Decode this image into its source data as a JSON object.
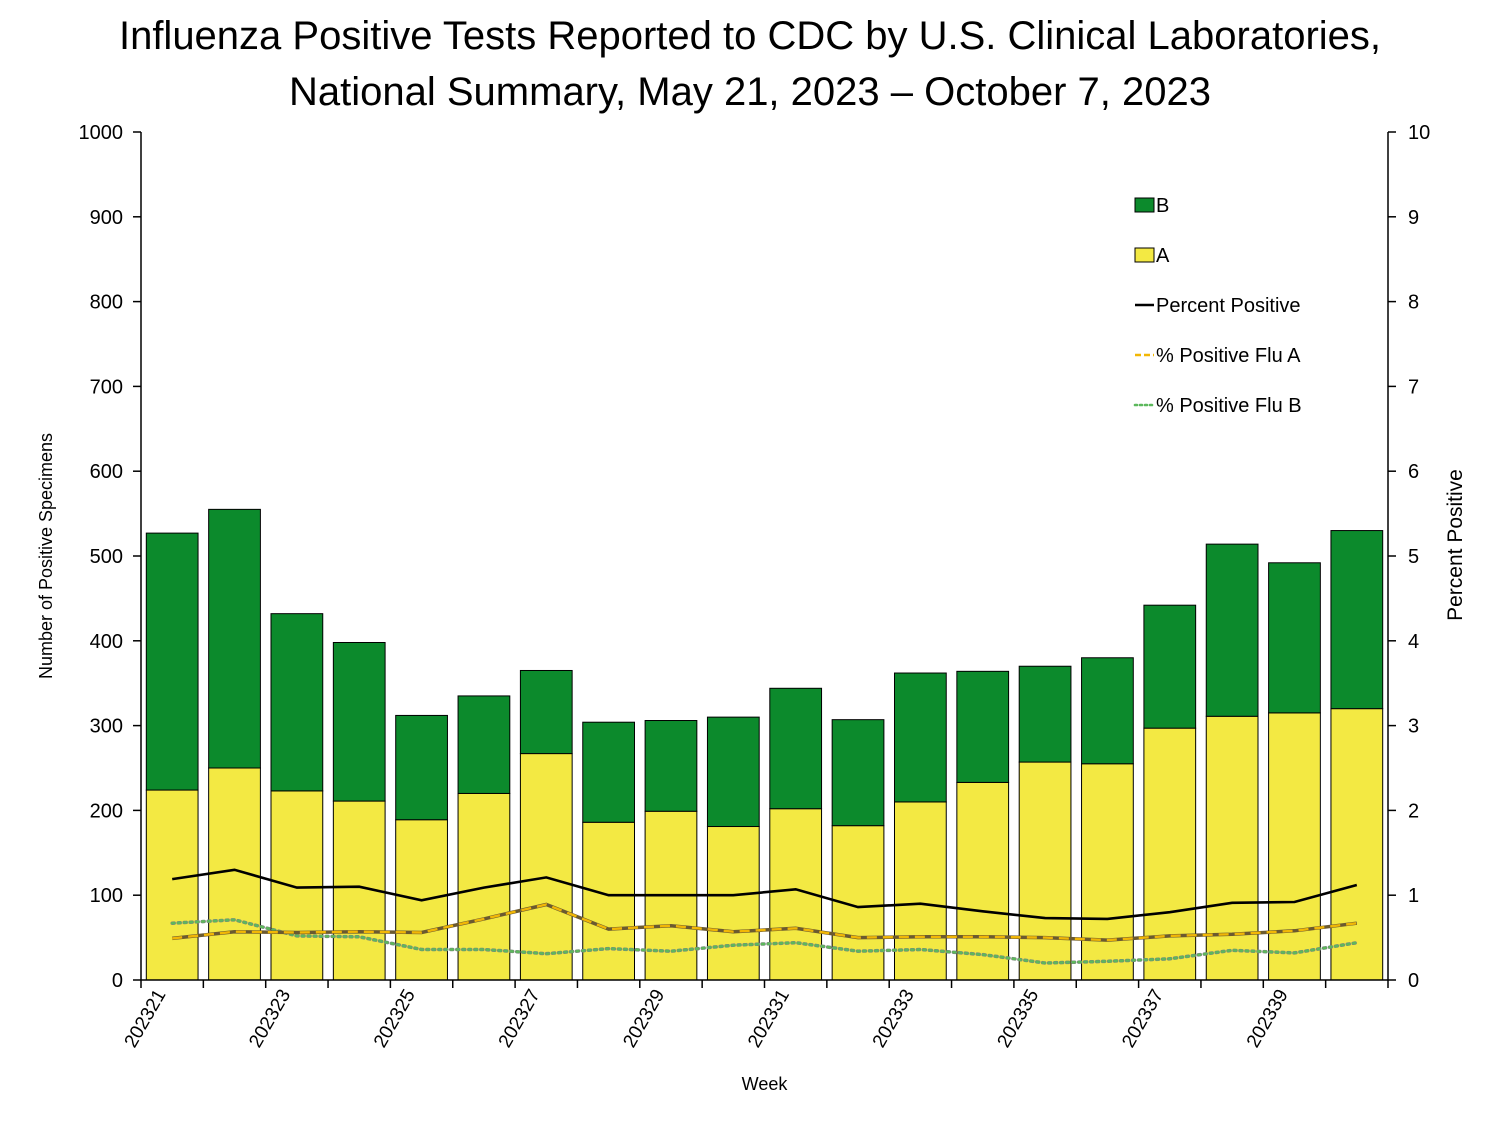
{
  "chart_data": {
    "type": "bar",
    "title_line1": "Influenza Positive Tests Reported to CDC by U.S. Clinical Laboratories,",
    "title_line2": "National Summary, May 21, 2023 – October 7, 2023",
    "xlabel": "Week",
    "ylabel": "Number of Positive Specimens",
    "y2label": "Percent Positive",
    "ylim": [
      0,
      1000
    ],
    "y2lim": [
      0,
      10
    ],
    "y_ticks": [
      "0",
      "100",
      "200",
      "300",
      "400",
      "500",
      "600",
      "700",
      "800",
      "900",
      "1000"
    ],
    "y2_ticks": [
      "0",
      "1",
      "2",
      "3",
      "4",
      "5",
      "6",
      "7",
      "8",
      "9",
      "10"
    ],
    "categories": [
      "202321",
      "202322",
      "202323",
      "202324",
      "202325",
      "202326",
      "202327",
      "202328",
      "202329",
      "202330",
      "202331",
      "202332",
      "202333",
      "202334",
      "202335",
      "202336",
      "202337",
      "202338",
      "202339",
      "202340"
    ],
    "x_tick_labels_shown": [
      "202321",
      "202323",
      "202325",
      "202327",
      "202329",
      "202331",
      "202333",
      "202335",
      "202337",
      "202339"
    ],
    "series": [
      {
        "name": "A",
        "kind": "stacked-bar",
        "color": "#F3E943",
        "values": [
          224,
          250,
          223,
          211,
          189,
          220,
          267,
          186,
          199,
          181,
          202,
          182,
          210,
          233,
          257,
          255,
          297,
          311,
          315,
          320
        ]
      },
      {
        "name": "B",
        "kind": "stacked-bar",
        "color": "#0C8A2C",
        "values": [
          303,
          305,
          209,
          187,
          123,
          115,
          98,
          118,
          107,
          129,
          142,
          125,
          152,
          131,
          113,
          125,
          145,
          203,
          177,
          210
        ]
      },
      {
        "name": "Percent Positive",
        "kind": "line",
        "axis": "right",
        "color": "#000000",
        "dash": "solid",
        "values": [
          1.19,
          1.3,
          1.09,
          1.1,
          0.94,
          1.09,
          1.21,
          1.0,
          1.0,
          1.0,
          1.07,
          0.86,
          0.9,
          0.81,
          0.73,
          0.72,
          0.8,
          0.91,
          0.92,
          1.12
        ]
      },
      {
        "name": "% Positive Flu A",
        "kind": "line",
        "axis": "right",
        "color": "#F2B705",
        "dash": "dashed",
        "values": [
          0.49,
          0.57,
          0.56,
          0.57,
          0.56,
          0.72,
          0.89,
          0.6,
          0.64,
          0.57,
          0.61,
          0.5,
          0.51,
          0.51,
          0.5,
          0.47,
          0.52,
          0.54,
          0.58,
          0.67
        ]
      },
      {
        "name": "% Positive Flu B",
        "kind": "line",
        "axis": "right",
        "color": "#5CB85C",
        "dash": "dotted",
        "values": [
          0.67,
          0.71,
          0.52,
          0.51,
          0.36,
          0.36,
          0.31,
          0.37,
          0.34,
          0.41,
          0.44,
          0.34,
          0.36,
          0.3,
          0.2,
          0.22,
          0.25,
          0.35,
          0.32,
          0.44
        ]
      }
    ],
    "legend": {
      "placement": "top-right",
      "items": [
        {
          "label": "B",
          "symbol": "box",
          "color": "#0C8A2C"
        },
        {
          "label": "A",
          "symbol": "box",
          "color": "#F3E943"
        },
        {
          "label": "Percent Positive",
          "symbol": "line",
          "color": "#000000",
          "dash": "solid"
        },
        {
          "label": "% Positive Flu A",
          "symbol": "line",
          "color": "#F2B705",
          "dash": "dashed"
        },
        {
          "label": "% Positive Flu B",
          "symbol": "line",
          "color": "#5CB85C",
          "dash": "dotted"
        }
      ]
    },
    "grid": false
  }
}
